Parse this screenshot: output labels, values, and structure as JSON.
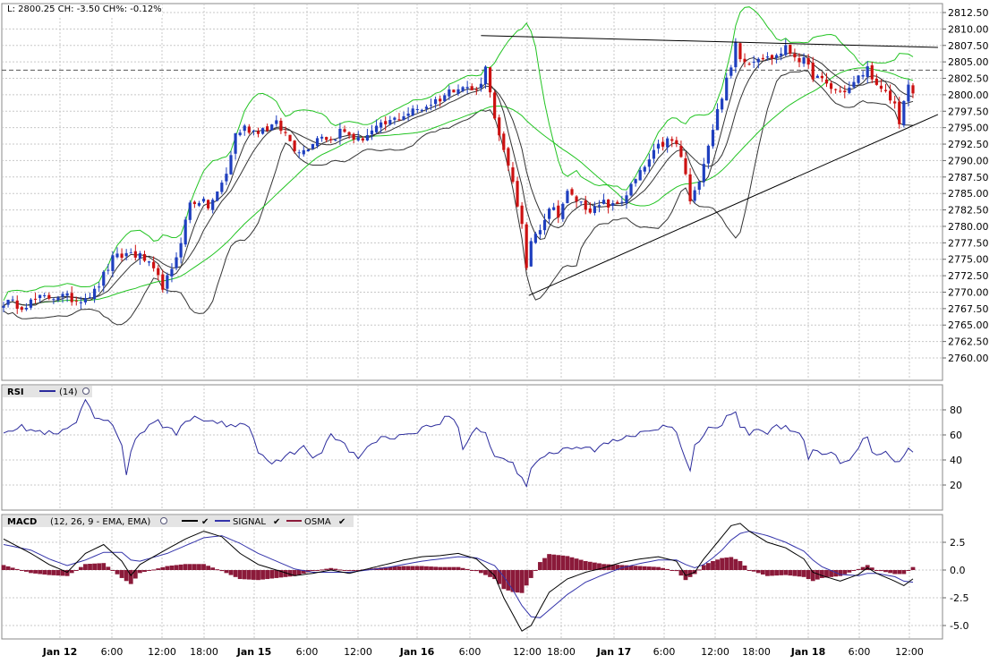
{
  "header": {
    "status": "L: 2800.25 CH: -3.50 CH%: -0.12%",
    "rsi_label": "RSI",
    "rsi_params": "(14)",
    "macd_label": "MACD",
    "macd_params": "(12, 26, 9 - EMA, EMA)",
    "signal_label": "SIGNAL",
    "osma_label": "OSMA"
  },
  "colors": {
    "up_candle": "#1f3fbf",
    "down_candle": "#cc1111",
    "bollinger": "#22c422",
    "ma_band": "#333333",
    "rsi_line": "#2b2b9c",
    "macd_line": "#000000",
    "signal_line": "#3333aa",
    "osma_bar": "#8b1a3a",
    "grid": "#c8c8c8"
  },
  "chart_data": [
    {
      "type": "candlestick",
      "panel": "price",
      "ylim": [
        2757.5,
        2813.75
      ],
      "y_ticks": [
        "2812.50",
        "2810.00",
        "2807.50",
        "2805.00",
        "2802.50",
        "2800.00",
        "2797.50",
        "2795.00",
        "2792.50",
        "2790.00",
        "2787.50",
        "2785.00",
        "2782.50",
        "2780.00",
        "2777.50",
        "2775.00",
        "2772.50",
        "2770.00",
        "2767.50",
        "2765.00",
        "2762.50",
        "2760.00"
      ],
      "reference_line": 2803.75,
      "x_ticks": [
        "Jan 12",
        "6:00",
        "12:00",
        "18:00",
        "Jan 15",
        "6:00",
        "12:00",
        "Jan 16",
        "6:00",
        "12:00",
        "18:00",
        "Jan 17",
        "6:00",
        "12:00",
        "18:00",
        "Jan 18",
        "6:00",
        "12:00"
      ],
      "x_ticks_bold": [
        "Jan 12",
        "Jan 15",
        "Jan 16",
        "Jan 17",
        "Jan 18"
      ],
      "close_path": [
        [
          0,
          2768.5
        ],
        [
          4,
          2768.0
        ],
        [
          8,
          2769.0
        ],
        [
          12,
          2769.5
        ],
        [
          16,
          2768.8
        ],
        [
          20,
          2770.0
        ],
        [
          24,
          2775.0
        ],
        [
          28,
          2776.0
        ],
        [
          31,
          2775.0
        ],
        [
          33,
          2773.0
        ],
        [
          35,
          2771.0
        ],
        [
          37,
          2773.0
        ],
        [
          39,
          2778.0
        ],
        [
          41,
          2783.5
        ],
        [
          43,
          2784.0
        ],
        [
          45,
          2783.0
        ],
        [
          47,
          2785.0
        ],
        [
          49,
          2788.0
        ],
        [
          51,
          2794.0
        ],
        [
          53,
          2795.0
        ],
        [
          55,
          2794.5
        ],
        [
          58,
          2795.0
        ],
        [
          60,
          2795.5
        ],
        [
          62,
          2794.0
        ],
        [
          64,
          2792.0
        ],
        [
          66,
          2791.5
        ],
        [
          68,
          2793.0
        ],
        [
          70,
          2794.0
        ],
        [
          72,
          2793.0
        ],
        [
          74,
          2794.5
        ],
        [
          76,
          2794.0
        ],
        [
          78,
          2793.0
        ],
        [
          80,
          2794.0
        ],
        [
          84,
          2795.5
        ],
        [
          88,
          2797.0
        ],
        [
          92,
          2798.0
        ],
        [
          96,
          2799.5
        ],
        [
          100,
          2801.5
        ],
        [
          102,
          2801.0
        ],
        [
          104,
          2800.5
        ],
        [
          106,
          2804.0
        ],
        [
          107,
          2801.0
        ],
        [
          108,
          2796.0
        ],
        [
          110,
          2791.0
        ],
        [
          112,
          2787.0
        ],
        [
          114,
          2780.0
        ],
        [
          115,
          2773.0
        ],
        [
          116,
          2778.0
        ],
        [
          118,
          2780.0
        ],
        [
          120,
          2783.0
        ],
        [
          122,
          2782.0
        ],
        [
          124,
          2785.0
        ],
        [
          126,
          2784.0
        ],
        [
          128,
          2783.0
        ],
        [
          130,
          2782.5
        ],
        [
          132,
          2783.5
        ],
        [
          134,
          2783.0
        ],
        [
          136,
          2784.0
        ],
        [
          138,
          2786.0
        ],
        [
          140,
          2788.0
        ],
        [
          142,
          2790.0
        ],
        [
          144,
          2792.0
        ],
        [
          146,
          2793.0
        ],
        [
          148,
          2792.5
        ],
        [
          150,
          2788.0
        ],
        [
          151,
          2783.5
        ],
        [
          152,
          2785.0
        ],
        [
          154,
          2790.0
        ],
        [
          156,
          2795.0
        ],
        [
          158,
          2800.0
        ],
        [
          160,
          2804.0
        ],
        [
          161,
          2808.0
        ],
        [
          162,
          2806.0
        ],
        [
          164,
          2805.0
        ],
        [
          166,
          2806.0
        ],
        [
          168,
          2805.5
        ],
        [
          170,
          2806.0
        ],
        [
          172,
          2807.0
        ],
        [
          174,
          2806.0
        ],
        [
          176,
          2805.0
        ],
        [
          178,
          2803.0
        ],
        [
          180,
          2802.0
        ],
        [
          182,
          2801.0
        ],
        [
          184,
          2800.5
        ],
        [
          186,
          2801.0
        ],
        [
          188,
          2802.5
        ],
        [
          190,
          2804.0
        ],
        [
          191,
          2803.0
        ],
        [
          192,
          2801.0
        ],
        [
          194,
          2800.0
        ],
        [
          196,
          2798.5
        ],
        [
          197,
          2796.0
        ],
        [
          198,
          2799.0
        ],
        [
          199,
          2801.0
        ],
        [
          200,
          2800.25
        ]
      ],
      "n_bars": 201,
      "bollinger_note": "upper/lower bands and moving averages derived from close_path"
    },
    {
      "type": "line",
      "panel": "rsi",
      "ylim": [
        10,
        95
      ],
      "y_ticks": [
        80,
        60,
        40,
        20
      ],
      "points": [
        [
          0,
          64
        ],
        [
          4,
          66
        ],
        [
          8,
          62
        ],
        [
          12,
          60
        ],
        [
          16,
          70
        ],
        [
          18,
          86
        ],
        [
          20,
          74
        ],
        [
          24,
          68
        ],
        [
          26,
          52
        ],
        [
          27,
          30
        ],
        [
          28,
          48
        ],
        [
          30,
          62
        ],
        [
          34,
          70
        ],
        [
          38,
          62
        ],
        [
          42,
          75
        ],
        [
          46,
          70
        ],
        [
          50,
          68
        ],
        [
          54,
          68
        ],
        [
          56,
          48
        ],
        [
          58,
          40
        ],
        [
          60,
          38
        ],
        [
          62,
          45
        ],
        [
          64,
          44
        ],
        [
          66,
          50
        ],
        [
          68,
          42
        ],
        [
          70,
          48
        ],
        [
          72,
          62
        ],
        [
          74,
          55
        ],
        [
          76,
          48
        ],
        [
          78,
          40
        ],
        [
          80,
          52
        ],
        [
          84,
          58
        ],
        [
          88,
          60
        ],
        [
          92,
          65
        ],
        [
          96,
          70
        ],
        [
          98,
          76
        ],
        [
          100,
          66
        ],
        [
          101,
          48
        ],
        [
          102,
          56
        ],
        [
          104,
          66
        ],
        [
          106,
          62
        ],
        [
          107,
          50
        ],
        [
          108,
          44
        ],
        [
          110,
          42
        ],
        [
          112,
          36
        ],
        [
          114,
          26
        ],
        [
          115,
          20
        ],
        [
          116,
          35
        ],
        [
          118,
          42
        ],
        [
          120,
          45
        ],
        [
          124,
          48
        ],
        [
          128,
          50
        ],
        [
          130,
          48
        ],
        [
          132,
          52
        ],
        [
          134,
          55
        ],
        [
          138,
          60
        ],
        [
          142,
          65
        ],
        [
          146,
          68
        ],
        [
          148,
          60
        ],
        [
          150,
          40
        ],
        [
          151,
          30
        ],
        [
          152,
          50
        ],
        [
          154,
          62
        ],
        [
          156,
          66
        ],
        [
          158,
          70
        ],
        [
          160,
          76
        ],
        [
          161,
          80
        ],
        [
          162,
          66
        ],
        [
          164,
          62
        ],
        [
          166,
          65
        ],
        [
          168,
          62
        ],
        [
          170,
          66
        ],
        [
          172,
          67
        ],
        [
          174,
          64
        ],
        [
          176,
          55
        ],
        [
          177,
          38
        ],
        [
          178,
          48
        ],
        [
          180,
          44
        ],
        [
          182,
          46
        ],
        [
          184,
          38
        ],
        [
          186,
          42
        ],
        [
          188,
          50
        ],
        [
          190,
          60
        ],
        [
          191,
          48
        ],
        [
          192,
          44
        ],
        [
          194,
          48
        ],
        [
          196,
          40
        ],
        [
          197,
          38
        ],
        [
          198,
          44
        ],
        [
          199,
          48
        ],
        [
          200,
          47
        ]
      ]
    },
    {
      "type": "macd",
      "panel": "macd",
      "ylim": [
        -6.1,
        4.8
      ],
      "y_ticks": [
        2.5,
        0.0,
        -2.5,
        -5.0
      ],
      "macd": [
        [
          0,
          2.8
        ],
        [
          6,
          1.5
        ],
        [
          10,
          0.5
        ],
        [
          14,
          -0.2
        ],
        [
          18,
          1.5
        ],
        [
          22,
          2.3
        ],
        [
          26,
          0.8
        ],
        [
          28,
          -0.5
        ],
        [
          30,
          0.5
        ],
        [
          36,
          1.9
        ],
        [
          40,
          2.8
        ],
        [
          44,
          3.5
        ],
        [
          48,
          3.0
        ],
        [
          52,
          1.5
        ],
        [
          56,
          0.5
        ],
        [
          60,
          0.0
        ],
        [
          64,
          -0.5
        ],
        [
          68,
          -0.3
        ],
        [
          72,
          0.0
        ],
        [
          76,
          -0.3
        ],
        [
          80,
          0.1
        ],
        [
          84,
          0.5
        ],
        [
          88,
          0.9
        ],
        [
          92,
          1.2
        ],
        [
          96,
          1.3
        ],
        [
          100,
          1.5
        ],
        [
          104,
          1.0
        ],
        [
          108,
          -0.5
        ],
        [
          110,
          -2.5
        ],
        [
          112,
          -4.0
        ],
        [
          114,
          -5.5
        ],
        [
          116,
          -5.0
        ],
        [
          118,
          -3.5
        ],
        [
          120,
          -2.0
        ],
        [
          124,
          -0.8
        ],
        [
          128,
          -0.2
        ],
        [
          132,
          0.2
        ],
        [
          136,
          0.7
        ],
        [
          140,
          1.0
        ],
        [
          144,
          1.2
        ],
        [
          148,
          0.8
        ],
        [
          150,
          -0.5
        ],
        [
          152,
          -0.2
        ],
        [
          154,
          1.0
        ],
        [
          156,
          2.0
        ],
        [
          158,
          3.0
        ],
        [
          160,
          4.0
        ],
        [
          162,
          4.2
        ],
        [
          164,
          3.5
        ],
        [
          168,
          2.5
        ],
        [
          172,
          2.0
        ],
        [
          176,
          1.0
        ],
        [
          178,
          -0.2
        ],
        [
          180,
          -0.5
        ],
        [
          184,
          -1.0
        ],
        [
          188,
          -0.4
        ],
        [
          190,
          0.2
        ],
        [
          192,
          -0.3
        ],
        [
          196,
          -1.0
        ],
        [
          198,
          -1.4
        ],
        [
          200,
          -0.8
        ]
      ],
      "signal": [
        [
          0,
          2.3
        ],
        [
          6,
          1.8
        ],
        [
          10,
          1.0
        ],
        [
          14,
          0.4
        ],
        [
          18,
          0.9
        ],
        [
          22,
          1.6
        ],
        [
          26,
          1.6
        ],
        [
          28,
          0.9
        ],
        [
          30,
          0.8
        ],
        [
          36,
          1.5
        ],
        [
          40,
          2.2
        ],
        [
          44,
          2.9
        ],
        [
          48,
          3.1
        ],
        [
          52,
          2.4
        ],
        [
          56,
          1.5
        ],
        [
          60,
          0.8
        ],
        [
          64,
          0.1
        ],
        [
          68,
          -0.2
        ],
        [
          72,
          -0.2
        ],
        [
          76,
          -0.2
        ],
        [
          80,
          0.0
        ],
        [
          84,
          0.2
        ],
        [
          88,
          0.5
        ],
        [
          92,
          0.8
        ],
        [
          96,
          1.0
        ],
        [
          100,
          1.2
        ],
        [
          104,
          1.1
        ],
        [
          108,
          0.4
        ],
        [
          110,
          -0.6
        ],
        [
          112,
          -1.8
        ],
        [
          114,
          -3.2
        ],
        [
          116,
          -4.2
        ],
        [
          118,
          -4.3
        ],
        [
          120,
          -3.6
        ],
        [
          124,
          -2.2
        ],
        [
          128,
          -1.1
        ],
        [
          132,
          -0.4
        ],
        [
          136,
          0.2
        ],
        [
          140,
          0.6
        ],
        [
          144,
          0.9
        ],
        [
          148,
          0.9
        ],
        [
          150,
          0.5
        ],
        [
          152,
          0.2
        ],
        [
          154,
          0.5
        ],
        [
          156,
          1.1
        ],
        [
          158,
          1.8
        ],
        [
          160,
          2.7
        ],
        [
          162,
          3.3
        ],
        [
          164,
          3.5
        ],
        [
          168,
          3.1
        ],
        [
          172,
          2.5
        ],
        [
          176,
          1.7
        ],
        [
          178,
          0.9
        ],
        [
          180,
          0.3
        ],
        [
          184,
          -0.4
        ],
        [
          188,
          -0.5
        ],
        [
          190,
          -0.3
        ],
        [
          192,
          -0.3
        ],
        [
          196,
          -0.6
        ],
        [
          198,
          -1.0
        ],
        [
          200,
          -1.1
        ]
      ]
    }
  ]
}
